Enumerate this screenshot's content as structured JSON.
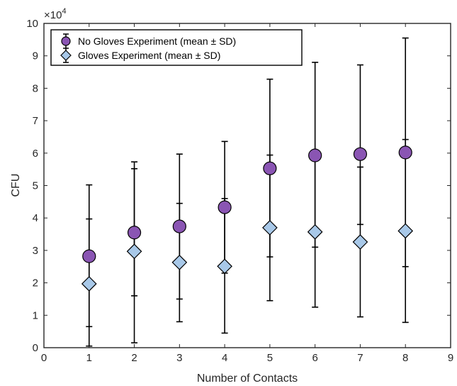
{
  "chart_data": {
    "type": "scatter",
    "title": "",
    "xlabel": "Number of Contacts",
    "ylabel": "CFU",
    "xlim": [
      0,
      9
    ],
    "ylim": [
      0,
      10
    ],
    "y_exponent_label": "×10",
    "y_exponent_power": "4",
    "x_ticks": [
      0,
      1,
      2,
      3,
      4,
      5,
      6,
      7,
      8,
      9
    ],
    "y_ticks": [
      0,
      1,
      2,
      3,
      4,
      5,
      6,
      7,
      8,
      9,
      10
    ],
    "grid": false,
    "legend_position": "top-left",
    "series": [
      {
        "name": "No Gloves Experiment (mean ± SD)",
        "marker": "circle",
        "color": "#8a55b3",
        "x": [
          1,
          2,
          3,
          4,
          5,
          6,
          7,
          8
        ],
        "y": [
          2.82,
          3.55,
          3.74,
          4.33,
          5.53,
          5.93,
          5.97,
          6.02
        ],
        "err_low": [
          0.05,
          1.6,
          1.5,
          2.3,
          2.8,
          3.1,
          3.8,
          2.5
        ],
        "err_high": [
          5.02,
          5.73,
          5.97,
          6.36,
          8.28,
          8.8,
          8.72,
          9.55
        ]
      },
      {
        "name": "Gloves Experiment (mean ± SD)",
        "marker": "diamond",
        "color": "#a8c8e8",
        "x": [
          1,
          2,
          3,
          4,
          5,
          6,
          7,
          8
        ],
        "y": [
          1.97,
          2.97,
          2.63,
          2.51,
          3.7,
          3.57,
          3.26,
          3.6
        ],
        "err_low": [
          0.65,
          0.15,
          0.8,
          0.45,
          1.45,
          1.25,
          0.95,
          0.78
        ],
        "err_high": [
          3.97,
          5.52,
          4.45,
          4.6,
          5.94,
          5.92,
          5.57,
          6.42
        ]
      }
    ]
  }
}
